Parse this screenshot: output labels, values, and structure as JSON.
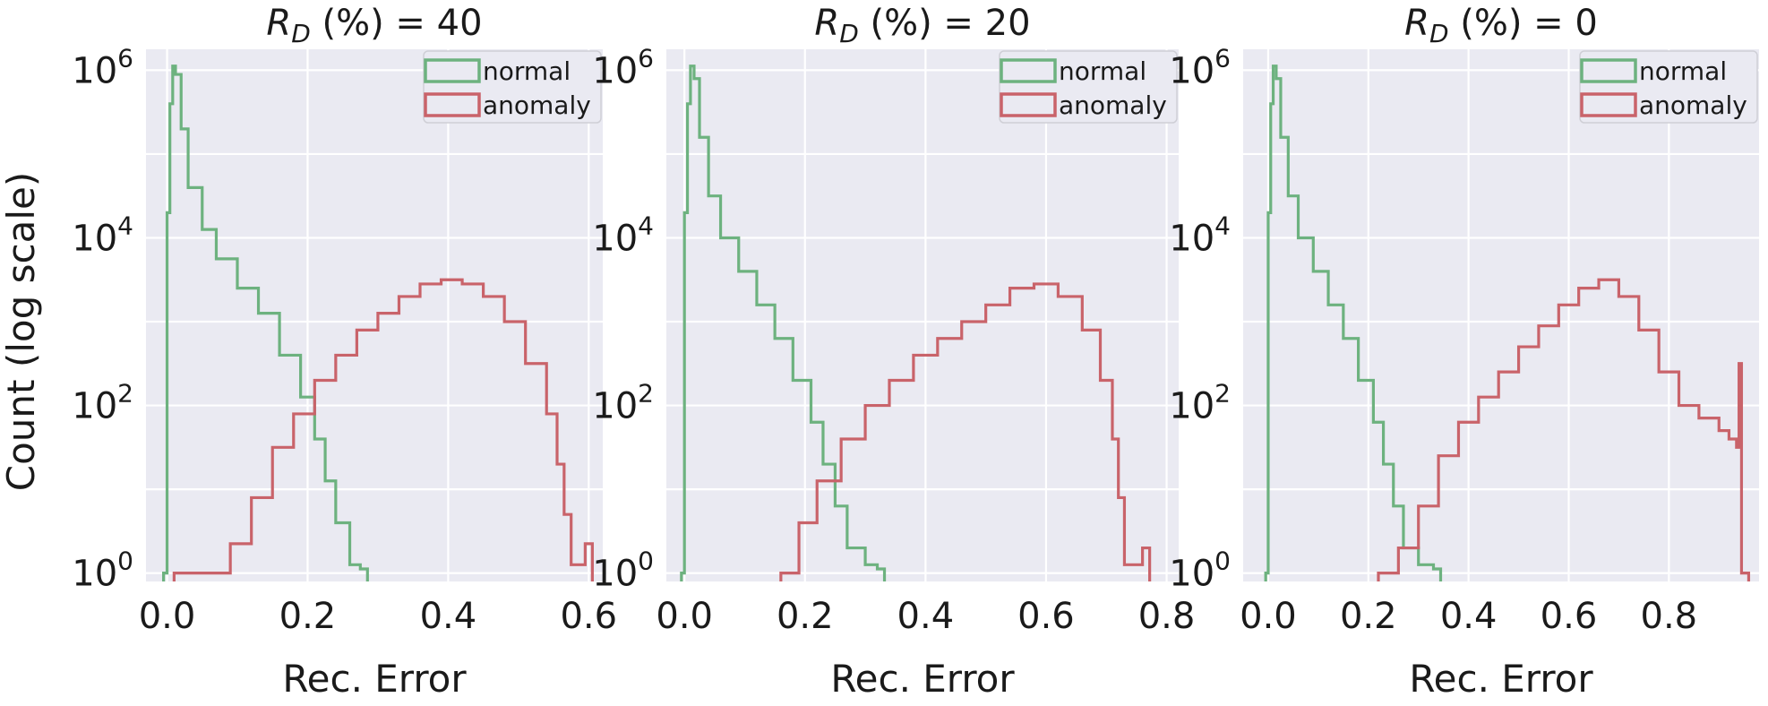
{
  "colors": {
    "normal": "#6db27f",
    "anomaly": "#c9636a",
    "panel_bg": "#eaeaf2",
    "grid": "#ffffff"
  },
  "ylabel": "Count (log scale)",
  "xlabel": "Rec. Error",
  "chart_data": [
    {
      "type": "histogram",
      "title_prefix": "R",
      "title_sub": "D",
      "title_suffix": " (%) = 40",
      "xlabel": "Rec. Error",
      "ylabel": "Count (log scale)",
      "yscale": "log",
      "xlim": [
        -0.03,
        0.62
      ],
      "xticks": [
        "0.0",
        "0.2",
        "0.4",
        "0.6"
      ],
      "xtick_values": [
        0.0,
        0.2,
        0.4,
        0.6
      ],
      "yticks": [
        "10^0",
        "10^2",
        "10^4",
        "10^6"
      ],
      "ylim_log10": [
        -0.1,
        6.25
      ],
      "grid": true,
      "legend_position": "top-right",
      "series": [
        {
          "name": "normal",
          "style": "step",
          "points": [
            [
              -0.005,
              0
            ],
            [
              0.0,
              4.3
            ],
            [
              0.004,
              5.6
            ],
            [
              0.008,
              6.05
            ],
            [
              0.012,
              5.95
            ],
            [
              0.02,
              5.3
            ],
            [
              0.03,
              4.6
            ],
            [
              0.05,
              4.1
            ],
            [
              0.07,
              3.75
            ],
            [
              0.1,
              3.4
            ],
            [
              0.13,
              3.1
            ],
            [
              0.16,
              2.6
            ],
            [
              0.19,
              2.1
            ],
            [
              0.21,
              1.6
            ],
            [
              0.225,
              1.1
            ],
            [
              0.24,
              0.6
            ],
            [
              0.26,
              0.1
            ],
            [
              0.275,
              0.05
            ]
          ]
        },
        {
          "name": "anomaly",
          "style": "step",
          "points": [
            [
              0.01,
              0.0
            ],
            [
              0.03,
              0.0
            ],
            [
              0.06,
              0.0
            ],
            [
              0.09,
              0.35
            ],
            [
              0.12,
              0.9
            ],
            [
              0.15,
              1.5
            ],
            [
              0.18,
              1.9
            ],
            [
              0.21,
              2.3
            ],
            [
              0.24,
              2.6
            ],
            [
              0.27,
              2.9
            ],
            [
              0.3,
              3.1
            ],
            [
              0.33,
              3.3
            ],
            [
              0.36,
              3.45
            ],
            [
              0.39,
              3.5
            ],
            [
              0.42,
              3.45
            ],
            [
              0.45,
              3.3
            ],
            [
              0.48,
              3.0
            ],
            [
              0.51,
              2.5
            ],
            [
              0.54,
              1.9
            ],
            [
              0.555,
              1.3
            ],
            [
              0.565,
              0.7
            ],
            [
              0.575,
              0.1
            ],
            [
              0.595,
              0.35
            ]
          ]
        }
      ]
    },
    {
      "type": "histogram",
      "title_prefix": "R",
      "title_sub": "D",
      "title_suffix": " (%) = 20",
      "xlabel": "Rec. Error",
      "ylabel": "",
      "yscale": "log",
      "xlim": [
        -0.03,
        0.82
      ],
      "xticks": [
        "0.0",
        "0.2",
        "0.4",
        "0.6",
        "0.8"
      ],
      "xtick_values": [
        0.0,
        0.2,
        0.4,
        0.6,
        0.8
      ],
      "yticks": [
        "10^0",
        "10^2",
        "10^4",
        "10^6"
      ],
      "ylim_log10": [
        -0.1,
        6.25
      ],
      "grid": true,
      "legend_position": "top-right",
      "series": [
        {
          "name": "normal",
          "style": "step",
          "points": [
            [
              -0.005,
              0
            ],
            [
              0.0,
              4.3
            ],
            [
              0.005,
              5.6
            ],
            [
              0.01,
              6.05
            ],
            [
              0.016,
              5.9
            ],
            [
              0.025,
              5.2
            ],
            [
              0.04,
              4.5
            ],
            [
              0.06,
              4.0
            ],
            [
              0.09,
              3.6
            ],
            [
              0.12,
              3.2
            ],
            [
              0.15,
              2.8
            ],
            [
              0.18,
              2.3
            ],
            [
              0.21,
              1.8
            ],
            [
              0.23,
              1.3
            ],
            [
              0.25,
              0.8
            ],
            [
              0.27,
              0.3
            ],
            [
              0.3,
              0.1
            ],
            [
              0.32,
              0.05
            ]
          ]
        },
        {
          "name": "anomaly",
          "style": "step",
          "points": [
            [
              0.16,
              0.0
            ],
            [
              0.19,
              0.6
            ],
            [
              0.22,
              1.1
            ],
            [
              0.26,
              1.6
            ],
            [
              0.3,
              2.0
            ],
            [
              0.34,
              2.3
            ],
            [
              0.38,
              2.6
            ],
            [
              0.42,
              2.8
            ],
            [
              0.46,
              3.0
            ],
            [
              0.5,
              3.2
            ],
            [
              0.54,
              3.4
            ],
            [
              0.58,
              3.45
            ],
            [
              0.62,
              3.3
            ],
            [
              0.66,
              2.9
            ],
            [
              0.69,
              2.3
            ],
            [
              0.71,
              1.6
            ],
            [
              0.72,
              0.9
            ],
            [
              0.73,
              0.1
            ],
            [
              0.76,
              0.3
            ]
          ]
        }
      ]
    },
    {
      "type": "histogram",
      "title_prefix": "R",
      "title_sub": "D",
      "title_suffix": " (%) = 0",
      "xlabel": "Rec. Error",
      "ylabel": "",
      "yscale": "log",
      "xlim": [
        -0.05,
        0.98
      ],
      "xticks": [
        "0.0",
        "0.2",
        "0.4",
        "0.6",
        "0.8"
      ],
      "xtick_values": [
        0.0,
        0.2,
        0.4,
        0.6,
        0.8
      ],
      "yticks": [
        "10^0",
        "10^2",
        "10^4",
        "10^6"
      ],
      "ylim_log10": [
        -0.1,
        6.25
      ],
      "grid": true,
      "legend_position": "top-right",
      "series": [
        {
          "name": "normal",
          "style": "step",
          "points": [
            [
              -0.005,
              0
            ],
            [
              0.0,
              4.3
            ],
            [
              0.005,
              5.6
            ],
            [
              0.01,
              6.05
            ],
            [
              0.016,
              5.9
            ],
            [
              0.025,
              5.2
            ],
            [
              0.04,
              4.5
            ],
            [
              0.06,
              4.0
            ],
            [
              0.09,
              3.6
            ],
            [
              0.12,
              3.2
            ],
            [
              0.15,
              2.8
            ],
            [
              0.18,
              2.3
            ],
            [
              0.21,
              1.8
            ],
            [
              0.23,
              1.3
            ],
            [
              0.25,
              0.8
            ],
            [
              0.27,
              0.3
            ],
            [
              0.3,
              0.1
            ],
            [
              0.33,
              0.05
            ]
          ]
        },
        {
          "name": "anomaly",
          "style": "step",
          "points": [
            [
              0.22,
              0.0
            ],
            [
              0.26,
              0.3
            ],
            [
              0.3,
              0.8
            ],
            [
              0.34,
              1.4
            ],
            [
              0.38,
              1.8
            ],
            [
              0.42,
              2.1
            ],
            [
              0.46,
              2.4
            ],
            [
              0.5,
              2.7
            ],
            [
              0.54,
              2.95
            ],
            [
              0.58,
              3.2
            ],
            [
              0.62,
              3.4
            ],
            [
              0.66,
              3.5
            ],
            [
              0.7,
              3.3
            ],
            [
              0.74,
              2.9
            ],
            [
              0.78,
              2.4
            ],
            [
              0.82,
              2.0
            ],
            [
              0.86,
              1.85
            ],
            [
              0.9,
              1.7
            ],
            [
              0.92,
              1.6
            ],
            [
              0.935,
              1.5
            ],
            [
              0.94,
              2.5
            ],
            [
              0.945,
              0.0
            ]
          ]
        }
      ]
    }
  ]
}
